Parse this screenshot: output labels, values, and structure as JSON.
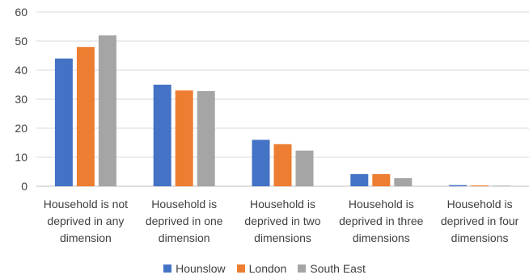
{
  "chart_data": {
    "type": "bar",
    "title": "",
    "xlabel": "",
    "ylabel": "",
    "ylim": [
      0,
      60
    ],
    "yticks": [
      0,
      10,
      20,
      30,
      40,
      50,
      60
    ],
    "grid": true,
    "legend_position": "bottom",
    "categories": [
      [
        "Household is not",
        "deprived in any",
        "dimension"
      ],
      [
        "Household is",
        "deprived in one",
        "dimension"
      ],
      [
        "Household is",
        "deprived in two",
        "dimensions"
      ],
      [
        "Household is",
        "deprived in three",
        "dimensions"
      ],
      [
        "Household is",
        "deprived in four",
        "dimensions"
      ]
    ],
    "series": [
      {
        "name": "Hounslow",
        "color": "#4472C4",
        "values": [
          44,
          35,
          16,
          4.2,
          0.4
        ]
      },
      {
        "name": "London",
        "color": "#ED7D31",
        "values": [
          48,
          33,
          14.5,
          4.2,
          0.3
        ]
      },
      {
        "name": "South East",
        "color": "#A5A5A5",
        "values": [
          52,
          32.8,
          12.3,
          2.8,
          0.2
        ]
      }
    ]
  }
}
